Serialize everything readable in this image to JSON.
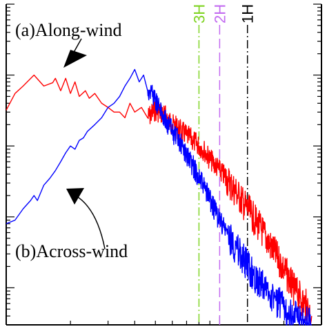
{
  "chart_data": {
    "type": "line",
    "xscale": "log",
    "yscale": "log",
    "grid": false,
    "legend": "none",
    "title": "",
    "xlabel": "",
    "ylabel": "",
    "xlim": [
      0.1,
      3
    ],
    "ylim": [
      3e-05,
      1
    ],
    "series": [
      {
        "color": "#ff0000",
        "x": [
          0.1,
          0.11,
          0.12,
          0.135,
          0.15,
          0.165,
          0.17,
          0.18,
          0.19,
          0.2,
          0.21,
          0.22,
          0.235,
          0.245,
          0.26,
          0.28,
          0.3,
          0.32,
          0.34,
          0.36,
          0.38,
          0.4,
          0.43,
          0.46,
          0.5,
          0.55,
          0.6,
          0.65,
          0.7,
          0.75,
          0.8,
          0.85,
          0.9,
          0.95,
          1.0,
          1.05,
          1.1,
          1.2,
          1.3,
          1.4,
          1.5,
          1.6,
          1.7,
          1.8,
          1.9,
          2.0,
          2.1,
          2.2,
          2.3,
          2.4,
          2.5,
          2.6,
          2.7
        ],
        "values": [
          0.032,
          0.055,
          0.07,
          0.1,
          0.07,
          0.078,
          0.09,
          0.06,
          0.09,
          0.055,
          0.08,
          0.05,
          0.06,
          0.047,
          0.055,
          0.04,
          0.035,
          0.03,
          0.03,
          0.025,
          0.04,
          0.03,
          0.035,
          0.025,
          0.032,
          0.028,
          0.02,
          0.017,
          0.014,
          0.012,
          0.01,
          0.0085,
          0.0065,
          0.0055,
          0.0045,
          0.0038,
          0.0031,
          0.0022,
          0.0015,
          0.0011,
          0.0008,
          0.0006,
          0.00042,
          0.00032,
          0.00024,
          0.00018,
          0.00014,
          0.0001,
          8.5e-05,
          7e-05,
          6e-05,
          5e-05,
          4e-05
        ]
      },
      {
        "color": "#0000ff",
        "x": [
          0.1,
          0.11,
          0.12,
          0.13,
          0.135,
          0.14,
          0.15,
          0.16,
          0.17,
          0.18,
          0.19,
          0.2,
          0.21,
          0.22,
          0.23,
          0.24,
          0.26,
          0.28,
          0.3,
          0.32,
          0.34,
          0.36,
          0.38,
          0.4,
          0.42,
          0.44,
          0.46,
          0.48,
          0.5,
          0.52,
          0.55,
          0.6,
          0.65,
          0.7,
          0.75,
          0.8,
          0.85,
          0.9,
          0.95,
          1.0,
          1.1,
          1.2,
          1.3,
          1.4,
          1.5,
          1.6,
          1.7,
          1.8,
          1.9,
          2.0,
          2.1,
          2.2,
          2.3,
          2.4,
          2.5,
          2.6,
          2.7
        ],
        "values": [
          0.0008,
          0.0009,
          0.0013,
          0.0017,
          0.002,
          0.0017,
          0.0028,
          0.0035,
          0.0045,
          0.006,
          0.008,
          0.01,
          0.009,
          0.012,
          0.013,
          0.016,
          0.02,
          0.025,
          0.035,
          0.04,
          0.05,
          0.07,
          0.09,
          0.12,
          0.08,
          0.1,
          0.06,
          0.06,
          0.045,
          0.035,
          0.025,
          0.016,
          0.011,
          0.0075,
          0.0052,
          0.0036,
          0.0025,
          0.0018,
          0.0012,
          0.0009,
          0.00055,
          0.00035,
          0.00024,
          0.00017,
          0.00013,
          0.0001,
          8.5e-05,
          7e-05,
          6e-05,
          5e-05,
          4.5e-05,
          4e-05,
          3.8e-05,
          3.6e-05,
          3.4e-05,
          3.2e-05,
          3e-05
        ]
      }
    ],
    "vlines": [
      {
        "label": "3H",
        "x": 0.8,
        "color": "#7ed321",
        "dash": "dashdot"
      },
      {
        "label": "2H",
        "x": 1.0,
        "color": "#c36bf0",
        "dash": "dashed"
      },
      {
        "label": "1H",
        "x": 1.35,
        "color": "#000000",
        "dash": "dashdot"
      }
    ],
    "annotations": [
      {
        "text": "(a)Along-wind"
      },
      {
        "text": "(b)Across-wind"
      }
    ]
  }
}
